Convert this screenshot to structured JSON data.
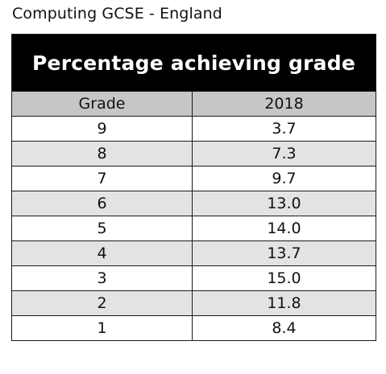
{
  "caption": "Computing GCSE - England",
  "table": {
    "title": "Percentage achieving grade",
    "columns": [
      "Grade",
      "2018"
    ],
    "rows": [
      {
        "grade": "9",
        "value": "3.7"
      },
      {
        "grade": "8",
        "value": "7.3"
      },
      {
        "grade": "7",
        "value": "9.7"
      },
      {
        "grade": "6",
        "value": "13.0"
      },
      {
        "grade": "5",
        "value": "14.0"
      },
      {
        "grade": "4",
        "value": "13.7"
      },
      {
        "grade": "3",
        "value": "15.0"
      },
      {
        "grade": "2",
        "value": "11.8"
      },
      {
        "grade": "1",
        "value": "8.4"
      }
    ]
  },
  "colors": {
    "banner": "#000000",
    "header": "#c6c6c6",
    "row_alt": "#e3e3e3"
  }
}
